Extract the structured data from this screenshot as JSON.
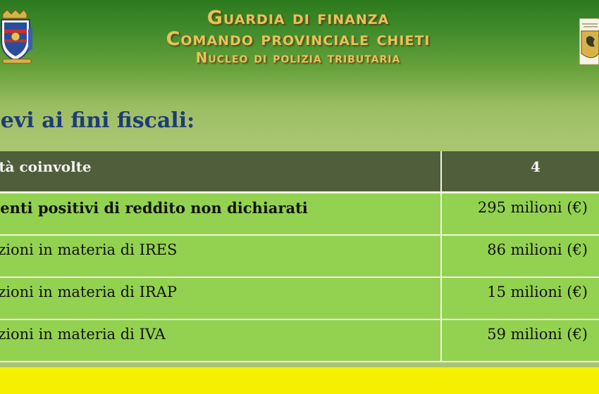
{
  "header": {
    "line1": "Guardia di finanza",
    "line2": "Comando provinciale chieti",
    "line3": "Nucleo di polizia tributaria"
  },
  "subtitle": "lievi ai fini fiscali:",
  "table": {
    "header": {
      "label": "ietà coinvolte",
      "value": "4"
    },
    "rows": [
      {
        "label": "menti positivi di reddito non dichiarati",
        "value": "295 milioni (€)",
        "bold": true
      },
      {
        "label": "lazioni in materia di IRES",
        "value": "86 milioni (€)",
        "bold": false
      },
      {
        "label": "lazioni in materia di IRAP",
        "value": "15 milioni (€)",
        "bold": false
      },
      {
        "label": "lazioni in materia di IVA",
        "value": "59 milioni (€)",
        "bold": false
      }
    ]
  },
  "colors": {
    "title_gold": "#e8c15c",
    "subtitle_blue": "#1f3b79",
    "table_header": "#4f5e3b",
    "table_row": "#93d250",
    "footer_yellow": "#f4f000"
  },
  "icons": {
    "left_logo": "guardia-di-finanza-crest-icon",
    "right_logo": "comando-badge-icon"
  }
}
